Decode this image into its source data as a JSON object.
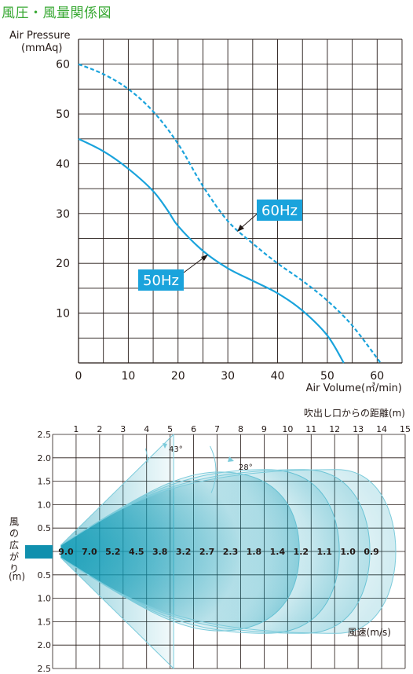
{
  "title": "風圧・風量関係図",
  "chart_data": [
    {
      "type": "line",
      "ylabel": "Air Pressure\n(mmAq)",
      "xlabel": "Air Volume(㎥/min)",
      "x_ticks": [
        "0",
        "10",
        "20",
        "30",
        "40",
        "50",
        "60"
      ],
      "y_ticks": [
        "10",
        "20",
        "30",
        "40",
        "50",
        "60"
      ],
      "xlim": [
        0,
        65
      ],
      "ylim": [
        0,
        65
      ],
      "grid": true,
      "colors": {
        "line": "#1aa3dc",
        "label_bg": "#1aa3dc",
        "label_text": "#ffffff"
      },
      "series": [
        {
          "name": "50Hz",
          "style": "solid",
          "x": [
            0,
            5,
            10,
            15,
            18,
            20,
            25,
            30,
            35,
            40,
            45,
            50,
            53.3
          ],
          "y": [
            45,
            42.5,
            39,
            34.5,
            30.5,
            27.5,
            22.5,
            19,
            16.5,
            14,
            10.5,
            5.5,
            0
          ]
        },
        {
          "name": "60Hz",
          "style": "dashed",
          "x": [
            0,
            5,
            10,
            15,
            20,
            25,
            30,
            35,
            40,
            45,
            50,
            55,
            60.7
          ],
          "y": [
            60,
            58,
            55,
            50.5,
            44,
            35.5,
            28.5,
            24,
            20,
            16.5,
            12.5,
            7.5,
            0
          ]
        }
      ]
    },
    {
      "type": "area",
      "xlabel": "吹出し口からの距離(m)",
      "ylabel": "風の広がり\n(m)",
      "x_ticks": [
        "1",
        "2",
        "3",
        "4",
        "5",
        "6",
        "7",
        "8",
        "9",
        "10",
        "11",
        "12",
        "13",
        "14",
        "15"
      ],
      "y_ticks_top": [
        "2.5",
        "2.0",
        "1.5",
        "1.0",
        "0.5"
      ],
      "y_ticks_bottom": [
        "0.5",
        "1.0",
        "1.5",
        "2.0",
        "2.5"
      ],
      "xlim": [
        0,
        15
      ],
      "ylim": [
        -2.5,
        2.5
      ],
      "grid": true,
      "angle_labels": [
        "43°",
        "28°"
      ],
      "velocity_title": "風速(m/s)",
      "velocity_positions": [
        0.5,
        1.5,
        2.5,
        3.5,
        4.5,
        5.5,
        6.5,
        7.5,
        8.5,
        9.5,
        10.5,
        11.5,
        12.5,
        13.5
      ],
      "velocities": [
        "9.0",
        "7.0",
        "5.2",
        "4.5",
        "3.8",
        "3.2",
        "2.7",
        "2.3",
        "1.8",
        "1.4",
        "1.2",
        "1.1",
        "1.0",
        "0.9"
      ],
      "lobe_ends": [
        10.5,
        12.2,
        13.5,
        14.6
      ],
      "colors": {
        "fill": "#0e9ab5",
        "nozzle": "#1090ae",
        "edge": "#7ccbdb"
      }
    }
  ]
}
